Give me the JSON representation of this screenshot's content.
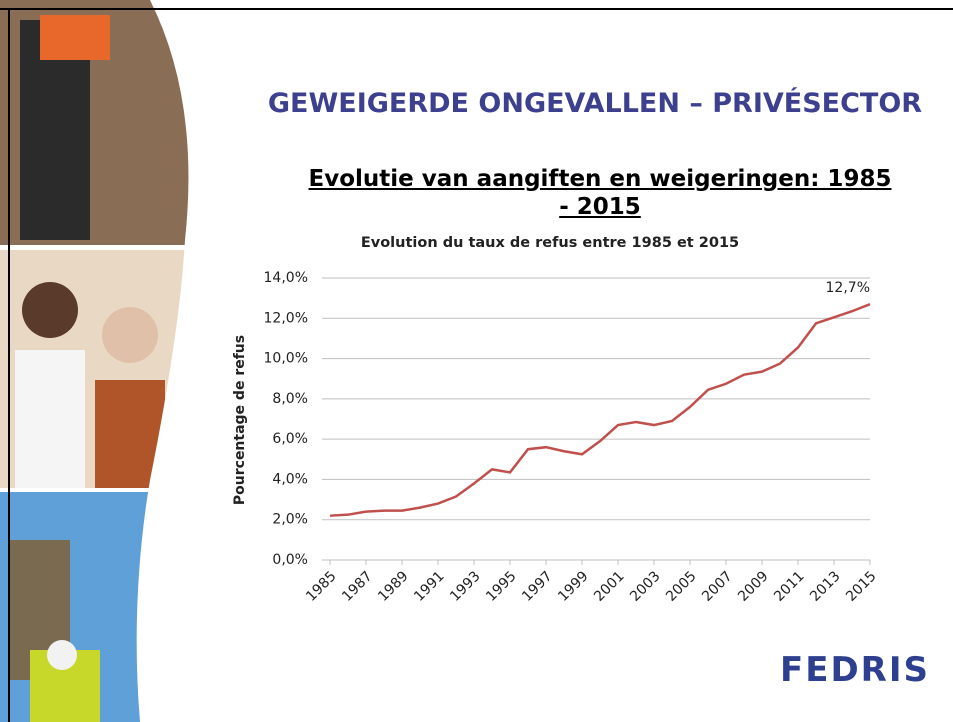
{
  "slide": {
    "title": "GEWEIGERDE ONGEVALLEN – PRIVÉSECTOR",
    "subtitle": "Evolutie van aangiften en weigeringen: 1985 - 2015",
    "logo": "FEDRIS"
  },
  "chart_data": {
    "type": "line",
    "title": "Evolution du taux de refus entre 1985 et 2015",
    "y_label": "Pourcentage de refus",
    "x": [
      1985,
      1986,
      1987,
      1988,
      1989,
      1990,
      1991,
      1992,
      1993,
      1994,
      1995,
      1996,
      1997,
      1998,
      1999,
      2000,
      2001,
      2002,
      2003,
      2004,
      2005,
      2006,
      2007,
      2008,
      2009,
      2010,
      2011,
      2012,
      2013,
      2014,
      2015
    ],
    "values": [
      2.2,
      2.25,
      2.4,
      2.45,
      2.45,
      2.6,
      2.8,
      3.15,
      3.8,
      4.5,
      4.35,
      5.5,
      5.6,
      5.4,
      5.25,
      5.9,
      6.7,
      6.85,
      6.7,
      6.9,
      7.6,
      8.45,
      8.75,
      9.2,
      9.35,
      9.75,
      10.55,
      11.75,
      12.05,
      12.35,
      12.7
    ],
    "value_labels": [
      null,
      null,
      null,
      null,
      null,
      null,
      null,
      null,
      null,
      null,
      null,
      null,
      null,
      null,
      null,
      null,
      null,
      null,
      null,
      null,
      null,
      null,
      null,
      null,
      null,
      null,
      null,
      null,
      null,
      null,
      "12,7%"
    ],
    "color": "#c0504d",
    "xlim": [
      1985,
      2015
    ],
    "xticks": [
      1985,
      1987,
      1989,
      1991,
      1993,
      1995,
      1997,
      1999,
      2001,
      2003,
      2005,
      2007,
      2009,
      2011,
      2013,
      2015
    ],
    "ylim": [
      0,
      14
    ],
    "yticks": [
      {
        "value": 0,
        "label": "0,0%"
      },
      {
        "value": 2,
        "label": "2,0%"
      },
      {
        "value": 4,
        "label": "4,0%"
      },
      {
        "value": 6,
        "label": "6,0%"
      },
      {
        "value": 8,
        "label": "8,0%"
      },
      {
        "value": 10,
        "label": "10,0%"
      },
      {
        "value": 12,
        "label": "12,0%"
      },
      {
        "value": 14,
        "label": "14,0%"
      }
    ],
    "grid": true
  }
}
